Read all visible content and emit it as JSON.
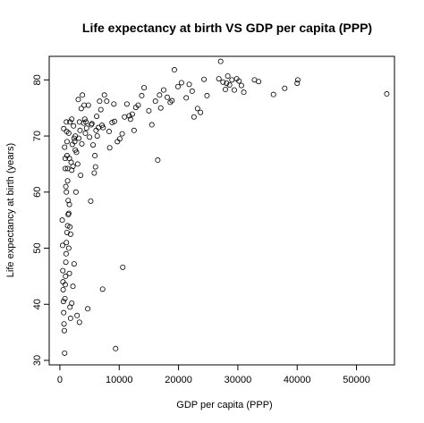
{
  "chart_data": {
    "type": "scatter",
    "title": "Life expectancy at birth VS GDP per capita (PPP)",
    "xlabel": "GDP per capita (PPP)",
    "ylabel": "Life expectancy at birth (years)",
    "xlim": [
      -1800,
      56400
    ],
    "ylim": [
      29.2,
      84.2
    ],
    "x_ticks": [
      0,
      10000,
      20000,
      30000,
      40000,
      50000
    ],
    "y_ticks": [
      30,
      40,
      50,
      60,
      70,
      80
    ],
    "grid": false,
    "legend": "none",
    "marker": "open-circle",
    "points": [
      [
        650,
        71.3
      ],
      [
        800,
        68
      ],
      [
        900,
        64.2
      ],
      [
        1000,
        61
      ],
      [
        1100,
        72.5
      ],
      [
        1150,
        70.8
      ],
      [
        1200,
        66.5
      ],
      [
        1300,
        64.2
      ],
      [
        1400,
        58.5
      ],
      [
        1500,
        56.2
      ],
      [
        1600,
        57.8
      ],
      [
        1700,
        53.8
      ],
      [
        1800,
        52.5
      ],
      [
        1900,
        65.3
      ],
      [
        2000,
        63.9
      ],
      [
        2200,
        64.6
      ],
      [
        2400,
        69.6
      ],
      [
        2600,
        70.0
      ],
      [
        2800,
        67.1
      ],
      [
        3000,
        65.0
      ],
      [
        3100,
        76.5
      ],
      [
        3300,
        72.5
      ],
      [
        3500,
        63.0
      ],
      [
        3600,
        74.9
      ],
      [
        3800,
        77.3
      ],
      [
        4000,
        72.3
      ],
      [
        4200,
        73.0
      ],
      [
        4500,
        71.4
      ],
      [
        4800,
        75.5
      ],
      [
        5000,
        69.8
      ],
      [
        5200,
        58.4
      ],
      [
        5400,
        72.2
      ],
      [
        5600,
        68.4
      ],
      [
        5800,
        63.4
      ],
      [
        6000,
        64.5
      ],
      [
        6200,
        73.5
      ],
      [
        6500,
        71.5
      ],
      [
        6900,
        74.7
      ],
      [
        7100,
        71.9
      ],
      [
        7500,
        77.3
      ],
      [
        7900,
        76.2
      ],
      [
        8400,
        67.9
      ],
      [
        8800,
        72.4
      ],
      [
        9100,
        75.7
      ],
      [
        9700,
        69.0
      ],
      [
        10500,
        70.4
      ],
      [
        10900,
        73.4
      ],
      [
        11300,
        75.7
      ],
      [
        11700,
        73.6
      ],
      [
        12200,
        73.9
      ],
      [
        12800,
        75.1
      ],
      [
        13800,
        77.2
      ],
      [
        14200,
        78.6
      ],
      [
        15500,
        72.0
      ],
      [
        16100,
        76.2
      ],
      [
        16800,
        77.3
      ],
      [
        17500,
        78.2
      ],
      [
        18100,
        76.9
      ],
      [
        18600,
        76.0
      ],
      [
        19300,
        81.8
      ],
      [
        19900,
        78.8
      ],
      [
        20500,
        79.5
      ],
      [
        21300,
        76.8
      ],
      [
        21800,
        79.2
      ],
      [
        22600,
        73.4
      ],
      [
        23200,
        74.9
      ],
      [
        23700,
        74.2
      ],
      [
        24300,
        80.1
      ],
      [
        26800,
        80.2
      ],
      [
        27100,
        83.3
      ],
      [
        27500,
        79.6
      ],
      [
        27900,
        78.3
      ],
      [
        28300,
        80.7
      ],
      [
        28600,
        79.1
      ],
      [
        29000,
        80.0
      ],
      [
        29400,
        78.2
      ],
      [
        29800,
        80.2
      ],
      [
        30200,
        79.8
      ],
      [
        31000,
        77.8
      ],
      [
        32800,
        80.0
      ],
      [
        36000,
        77.4
      ],
      [
        37900,
        78.5
      ],
      [
        40000,
        79.4
      ],
      [
        40100,
        80.0
      ],
      [
        55100,
        77.5
      ],
      [
        400,
        55
      ],
      [
        450,
        50.5
      ],
      [
        500,
        46
      ],
      [
        520,
        44
      ],
      [
        550,
        42.6
      ],
      [
        600,
        40.5
      ],
      [
        650,
        38.5
      ],
      [
        700,
        36.5
      ],
      [
        750,
        35.3
      ],
      [
        800,
        31.3
      ],
      [
        850,
        41.0
      ],
      [
        900,
        43.5
      ],
      [
        950,
        45.0
      ],
      [
        1000,
        47.5
      ],
      [
        1050,
        49.0
      ],
      [
        1100,
        51.0
      ],
      [
        1200,
        52.8
      ],
      [
        1300,
        54.0
      ],
      [
        1400,
        56.0
      ],
      [
        1500,
        50.0
      ],
      [
        1600,
        45.5
      ],
      [
        1700,
        39.5
      ],
      [
        1800,
        37.5
      ],
      [
        2000,
        40.2
      ],
      [
        2200,
        43.2
      ],
      [
        2400,
        47.2
      ],
      [
        2700,
        60.0
      ],
      [
        2900,
        38.0
      ],
      [
        3300,
        36.8
      ],
      [
        4700,
        39.2
      ],
      [
        7200,
        42.7
      ],
      [
        9400,
        32.1
      ],
      [
        10600,
        46.6
      ],
      [
        16500,
        65.7
      ],
      [
        1100,
        60.0
      ],
      [
        1300,
        62.0
      ],
      [
        1600,
        66.0
      ],
      [
        2100,
        68.5
      ],
      [
        2500,
        69.0
      ],
      [
        3400,
        71.0
      ],
      [
        4300,
        70.5
      ],
      [
        5300,
        72.0
      ],
      [
        6100,
        71.0
      ],
      [
        7300,
        71.5
      ],
      [
        9200,
        72.6
      ],
      [
        10100,
        69.5
      ],
      [
        11900,
        73.0
      ],
      [
        13200,
        75.5
      ],
      [
        15000,
        74.5
      ],
      [
        17000,
        75.0
      ],
      [
        18900,
        76.3
      ],
      [
        22300,
        78.0
      ],
      [
        24800,
        77.2
      ],
      [
        28100,
        79.4
      ],
      [
        30600,
        79.0
      ],
      [
        33500,
        79.7
      ],
      [
        1200,
        69.0
      ],
      [
        2300,
        71.8
      ],
      [
        3200,
        69.6
      ],
      [
        4400,
        72.5
      ],
      [
        6300,
        70.0
      ],
      [
        8300,
        70.8
      ],
      [
        12500,
        71.0
      ],
      [
        900,
        66.0
      ],
      [
        1500,
        70.5
      ],
      [
        2600,
        67.5
      ],
      [
        3700,
        68.6
      ],
      [
        5900,
        66.5
      ],
      [
        1700,
        72.5
      ],
      [
        2000,
        73.0
      ],
      [
        4100,
        75.5
      ],
      [
        6700,
        76.2
      ]
    ]
  }
}
